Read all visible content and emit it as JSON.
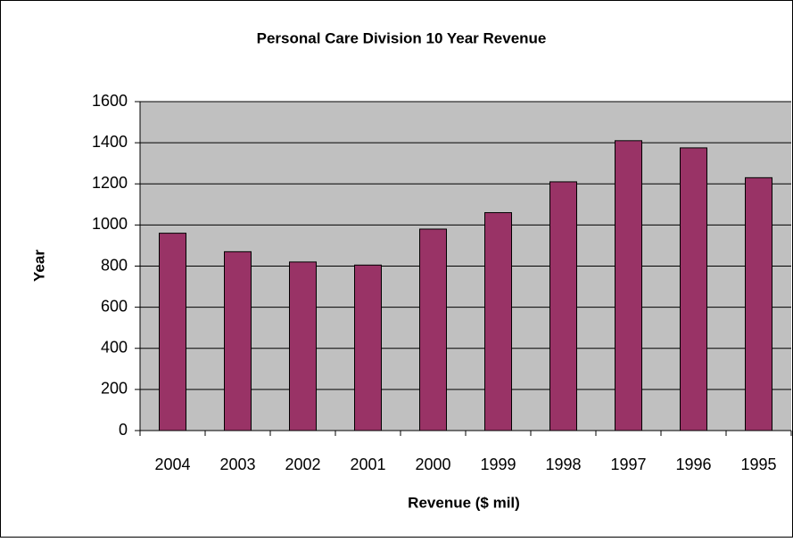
{
  "chart_data": {
    "type": "bar",
    "title": "Personal Care Division 10 Year Revenue",
    "x_label": "Revenue ($ mil)",
    "y_label": "Year",
    "categories": [
      "2004",
      "2003",
      "2002",
      "2001",
      "2000",
      "1999",
      "1998",
      "1997",
      "1996",
      "1995"
    ],
    "values": [
      960,
      870,
      820,
      805,
      980,
      1060,
      1210,
      1410,
      1375,
      1230
    ],
    "color": "#993366",
    "plot_background": "#c0c0c0",
    "ylim": [
      0,
      1600
    ],
    "yticks": [
      0,
      200,
      400,
      600,
      800,
      1000,
      1200,
      1400,
      1600
    ],
    "grid": true
  }
}
